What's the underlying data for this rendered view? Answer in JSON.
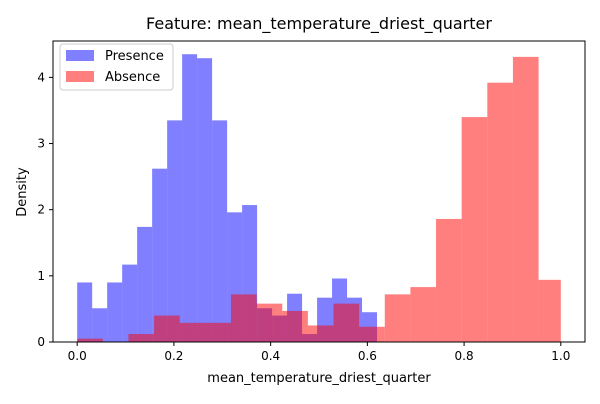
{
  "chart_data": {
    "type": "histogram",
    "title": "Feature: mean_temperature_driest_quarter",
    "xlabel": "mean_temperature_driest_quarter",
    "ylabel": "Density",
    "xlim": [
      -0.05,
      1.05
    ],
    "ylim": [
      0,
      4.55
    ],
    "xticks": [
      0.0,
      0.2,
      0.4,
      0.6,
      0.8,
      1.0
    ],
    "xtick_labels": [
      "0.0",
      "0.2",
      "0.4",
      "0.6",
      "0.8",
      "1.0"
    ],
    "yticks": [
      0,
      1,
      2,
      3,
      4
    ],
    "ytick_labels": [
      "0",
      "1",
      "2",
      "3",
      "4"
    ],
    "legend_position": "top-left",
    "grid": false,
    "series": [
      {
        "name": "Presence",
        "color": "#0000ff",
        "alpha": 0.5,
        "bins": [
          [
            0.0,
            0.031,
            0.9
          ],
          [
            0.031,
            0.062,
            0.51
          ],
          [
            0.062,
            0.093,
            0.9
          ],
          [
            0.093,
            0.124,
            1.17
          ],
          [
            0.124,
            0.155,
            1.74
          ],
          [
            0.155,
            0.186,
            2.62
          ],
          [
            0.186,
            0.217,
            3.35
          ],
          [
            0.217,
            0.248,
            4.35
          ],
          [
            0.248,
            0.279,
            4.29
          ],
          [
            0.279,
            0.31,
            3.35
          ],
          [
            0.31,
            0.341,
            1.96
          ],
          [
            0.341,
            0.372,
            2.07
          ],
          [
            0.372,
            0.403,
            0.51
          ],
          [
            0.403,
            0.434,
            0.4
          ],
          [
            0.434,
            0.465,
            0.73
          ],
          [
            0.465,
            0.496,
            0.12
          ],
          [
            0.496,
            0.527,
            0.67
          ],
          [
            0.527,
            0.558,
            0.96
          ],
          [
            0.558,
            0.589,
            0.67
          ],
          [
            0.589,
            0.62,
            0.45
          ]
        ]
      },
      {
        "name": "Absence",
        "color": "#ff0000",
        "alpha": 0.5,
        "bins": [
          [
            0.0,
            0.053,
            0.05
          ],
          [
            0.053,
            0.106,
            0.0
          ],
          [
            0.106,
            0.159,
            0.12
          ],
          [
            0.159,
            0.212,
            0.4
          ],
          [
            0.212,
            0.265,
            0.29
          ],
          [
            0.265,
            0.318,
            0.29
          ],
          [
            0.318,
            0.371,
            0.72
          ],
          [
            0.371,
            0.424,
            0.58
          ],
          [
            0.424,
            0.477,
            0.47
          ],
          [
            0.477,
            0.53,
            0.25
          ],
          [
            0.53,
            0.583,
            0.58
          ],
          [
            0.583,
            0.636,
            0.23
          ],
          [
            0.636,
            0.689,
            0.72
          ],
          [
            0.689,
            0.742,
            0.83
          ],
          [
            0.742,
            0.795,
            1.86
          ],
          [
            0.795,
            0.848,
            3.4
          ],
          [
            0.848,
            0.901,
            3.92
          ],
          [
            0.901,
            0.954,
            4.31
          ],
          [
            0.954,
            1.0,
            0.94
          ]
        ]
      }
    ]
  }
}
